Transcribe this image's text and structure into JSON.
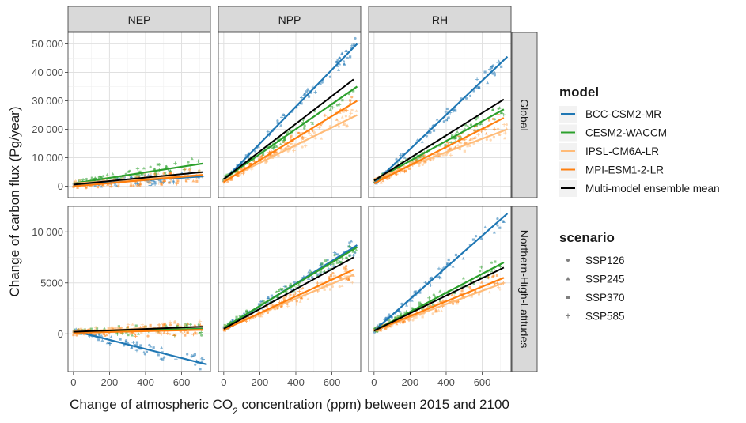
{
  "chart_data": {
    "type": "scatter",
    "ylabel": "Change of carbon flux (Pg/year)",
    "xlabel_parts": {
      "pre": "Change of atmospheric CO",
      "sub": "2",
      "post": " concentration (ppm) between 2015 and 2100"
    },
    "columns": [
      "NEP",
      "NPP",
      "RH"
    ],
    "rows": [
      "Global",
      "Northern-High-Latitudes"
    ],
    "x_ticks": [
      "0",
      "200",
      "400",
      "600"
    ],
    "x_range": [
      -30,
      760
    ],
    "y_axes": {
      "Global": {
        "range": [
          -4000,
          54000
        ],
        "ticks": [
          0,
          10000,
          20000,
          30000,
          40000,
          50000
        ],
        "tick_labels": [
          "0",
          "10 000",
          "20 000",
          "30 000",
          "40 000",
          "50 000"
        ]
      },
      "Northern-High-Latitudes": {
        "range": [
          -3700,
          12500
        ],
        "ticks": [
          0,
          5000,
          10000
        ],
        "tick_labels": [
          "0",
          "5000",
          "10 000"
        ]
      }
    },
    "legend_model": {
      "title": "model",
      "entries": [
        {
          "name": "BCC-CSM2-MR",
          "color": "#1f77b4"
        },
        {
          "name": "CESM2-WACCM",
          "color": "#2ca02c"
        },
        {
          "name": "IPSL-CM6A-LR",
          "color": "#ffbb78"
        },
        {
          "name": "MPI-ESM1-2-LR",
          "color": "#ff7f0e"
        },
        {
          "name": "Multi-model ensemble mean",
          "color": "#000000"
        }
      ]
    },
    "legend_scenario": {
      "title": "scenario",
      "entries": [
        {
          "name": "SSP126",
          "shape": "circle"
        },
        {
          "name": "SSP245",
          "shape": "triangle"
        },
        {
          "name": "SSP370",
          "shape": "square"
        },
        {
          "name": "SSP585",
          "shape": "plus"
        }
      ]
    },
    "fit_lines": {
      "Global|NEP": {
        "BCC-CSM2-MR": [
          [
            0,
            500
          ],
          [
            720,
            3500
          ]
        ],
        "CESM2-WACCM": [
          [
            0,
            1000
          ],
          [
            720,
            8000
          ]
        ],
        "IPSL-CM6A-LR": [
          [
            0,
            1000
          ],
          [
            720,
            4000
          ]
        ],
        "MPI-ESM1-2-LR": [
          [
            0,
            0
          ],
          [
            720,
            4000
          ]
        ],
        "Multi-model ensemble mean": [
          [
            0,
            600
          ],
          [
            720,
            5000
          ]
        ]
      },
      "Global|NPP": {
        "BCC-CSM2-MR": [
          [
            0,
            2000
          ],
          [
            740,
            50000
          ]
        ],
        "CESM2-WACCM": [
          [
            0,
            2500
          ],
          [
            740,
            35000
          ]
        ],
        "IPSL-CM6A-LR": [
          [
            0,
            2000
          ],
          [
            740,
            25000
          ]
        ],
        "MPI-ESM1-2-LR": [
          [
            0,
            1500
          ],
          [
            740,
            30000
          ]
        ],
        "Multi-model ensemble mean": [
          [
            0,
            2500
          ],
          [
            720,
            37500
          ]
        ]
      },
      "Global|RH": {
        "BCC-CSM2-MR": [
          [
            0,
            1000
          ],
          [
            740,
            45500
          ]
        ],
        "CESM2-WACCM": [
          [
            0,
            2000
          ],
          [
            720,
            27000
          ]
        ],
        "IPSL-CM6A-LR": [
          [
            0,
            2500
          ],
          [
            740,
            20000
          ]
        ],
        "MPI-ESM1-2-LR": [
          [
            0,
            1000
          ],
          [
            720,
            24000
          ]
        ],
        "Multi-model ensemble mean": [
          [
            0,
            2000
          ],
          [
            720,
            30500
          ]
        ]
      },
      "Northern-High-Latitudes|NEP": {
        "BCC-CSM2-MR": [
          [
            0,
            300
          ],
          [
            740,
            -3000
          ]
        ],
        "CESM2-WACCM": [
          [
            0,
            200
          ],
          [
            720,
            500
          ]
        ],
        "IPSL-CM6A-LR": [
          [
            0,
            250
          ],
          [
            720,
            700
          ]
        ],
        "MPI-ESM1-2-LR": [
          [
            0,
            100
          ],
          [
            720,
            400
          ]
        ],
        "Multi-model ensemble mean": [
          [
            0,
            200
          ],
          [
            720,
            700
          ]
        ]
      },
      "Northern-High-Latitudes|NPP": {
        "BCC-CSM2-MR": [
          [
            0,
            500
          ],
          [
            740,
            8700
          ]
        ],
        "CESM2-WACCM": [
          [
            0,
            600
          ],
          [
            740,
            8500
          ]
        ],
        "IPSL-CM6A-LR": [
          [
            0,
            500
          ],
          [
            720,
            5800
          ]
        ],
        "MPI-ESM1-2-LR": [
          [
            0,
            400
          ],
          [
            720,
            6300
          ]
        ],
        "Multi-model ensemble mean": [
          [
            0,
            500
          ],
          [
            720,
            7500
          ]
        ]
      },
      "Northern-High-Latitudes|RH": {
        "BCC-CSM2-MR": [
          [
            0,
            300
          ],
          [
            740,
            11800
          ]
        ],
        "CESM2-WACCM": [
          [
            0,
            300
          ],
          [
            720,
            7000
          ]
        ],
        "IPSL-CM6A-LR": [
          [
            0,
            300
          ],
          [
            720,
            5000
          ]
        ],
        "MPI-ESM1-2-LR": [
          [
            0,
            300
          ],
          [
            720,
            5500
          ]
        ],
        "Multi-model ensemble mean": [
          [
            0,
            300
          ],
          [
            720,
            6500
          ]
        ]
      }
    }
  }
}
